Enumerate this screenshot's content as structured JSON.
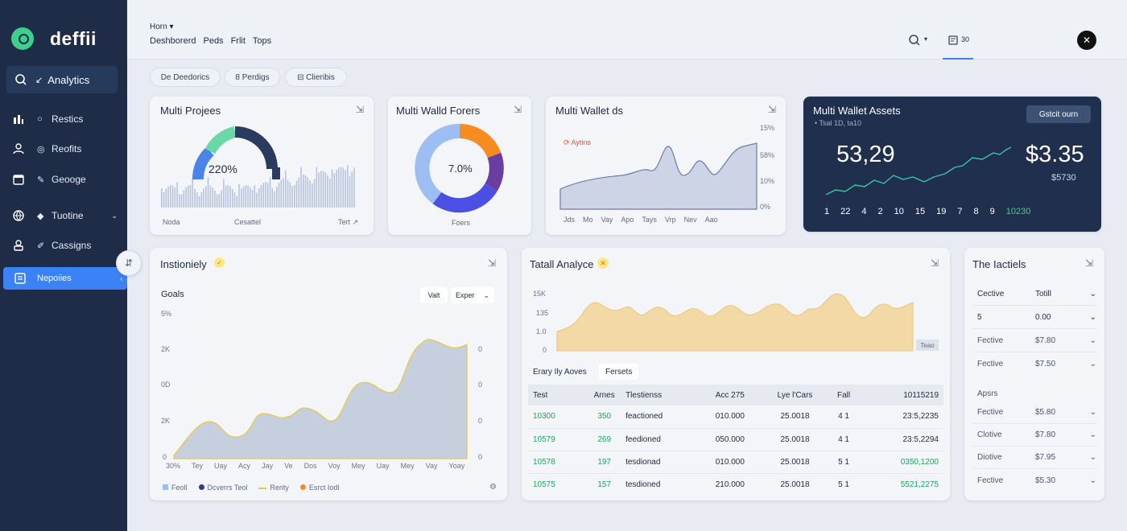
{
  "app": {
    "name": "deffii"
  },
  "sidebar": {
    "active": "Analytics",
    "items": [
      {
        "label": "Restics",
        "icon": "bar-chart-icon"
      },
      {
        "label": "Reofits",
        "icon": "people-icon"
      },
      {
        "label": "Geooge",
        "icon": "calendar-icon"
      },
      {
        "label": "Tuotine",
        "icon": "globe-icon"
      },
      {
        "label": "Cassigns",
        "icon": "user-icon"
      }
    ],
    "selected": "Nepoiies"
  },
  "header": {
    "crumb": "Horn ▾",
    "nav": [
      "Deshborerd",
      "Peds",
      "Frlit",
      "Tops"
    ],
    "tab": "30"
  },
  "filters": [
    "De Deedorics",
    "8 Perdigs",
    "⊟ Clieribis"
  ],
  "cards": {
    "projects": {
      "title": "Multi Projees",
      "center": "220%",
      "labels": [
        "Noda",
        "Cesattel",
        "Tert ↗"
      ]
    },
    "wallet_forces": {
      "title": "Multi Walld Forers",
      "center": "7.0%",
      "label": "Foers"
    },
    "wallet_ds": {
      "title": "Multi Wallet ds",
      "legend": "⟳ Aytins",
      "ylabels": [
        "15%",
        "58%",
        "10%",
        "0%"
      ],
      "months": [
        "Jds",
        "Mo",
        "Vay",
        "Apo",
        "Tays",
        "Vrp",
        "Nev",
        "Aao"
      ]
    },
    "assets": {
      "title": "Multi Wallet Assets",
      "sub": "• Tsal 1D, ta10",
      "button": "Gstcit ourn",
      "left_value": "53,29",
      "right_value": "$3.35",
      "right_sub": "$5730",
      "axis": [
        "1",
        "22",
        "4",
        "2",
        "10",
        "15",
        "19",
        "7",
        "8",
        "9",
        "10"
      ],
      "axis_highlight": "10230"
    },
    "insights": {
      "title": "Instioniely",
      "subtitle": "Goals",
      "btn1": "Valt",
      "btn2": "Exper",
      "yleft": [
        "5%",
        "2K",
        "0D",
        "2K",
        "0"
      ],
      "yright": [
        "0",
        "0",
        "0",
        "0",
        "0"
      ],
      "months": [
        "30%",
        "Tey",
        "Uay",
        "Acy",
        "Jay",
        "Ve",
        "Dos",
        "Voy",
        "Mey",
        "Uay",
        "Mey",
        "Vay",
        "Yoay"
      ],
      "legend": [
        "Feoll",
        "Dcverrs Teol",
        "Rerity",
        "Esrct Iodl"
      ]
    },
    "total": {
      "title": "Tatall Analyce",
      "ylabels": [
        "15K",
        "135",
        "1.0",
        "0"
      ],
      "tag": "Teao",
      "tab1": "Erary Ily Aoves",
      "tab2": "Fersets",
      "headers": [
        "Test",
        "Arnes",
        "Tlestienss",
        "Acc 275",
        "Lye l'Cars",
        "Fall",
        "10115219"
      ],
      "rows": [
        [
          "10300",
          "350",
          "feactioned",
          "010.000",
          "25.0018",
          "4 1",
          "23:5,2235"
        ],
        [
          "10579",
          "269",
          "feedioned",
          "050.000",
          "25.0018",
          "4 1",
          "23:5,2294"
        ],
        [
          "10578",
          "197",
          "tesdionad",
          "010.000",
          "25.0018",
          "5 1",
          "0350,1200"
        ],
        [
          "10575",
          "157",
          "tesdioned",
          "210.000",
          "25.0018",
          "5 1",
          "5521,2275"
        ]
      ]
    },
    "lactiels": {
      "title": "The Iactiels",
      "headers": [
        "Cective",
        "Totill"
      ],
      "rows": [
        [
          "5",
          "0.00"
        ],
        [
          "Fective",
          "$7.80"
        ],
        [
          "Fective",
          "$7.50"
        ]
      ],
      "section": "Apsrs",
      "rows2": [
        [
          "Fective",
          "$5.80"
        ],
        [
          "Clotive",
          "$7.80"
        ],
        [
          "Diotive",
          "$7.95"
        ],
        [
          "Fective",
          "$5.30"
        ]
      ]
    }
  },
  "colors": {
    "accent": "#3b82f6",
    "sidebar": "#1e2c47",
    "green": "#21a35f",
    "teal": "#3ecf9e",
    "orange": "#f68b1f",
    "navy": "#1e2c47",
    "purple": "#6a3ea1"
  }
}
